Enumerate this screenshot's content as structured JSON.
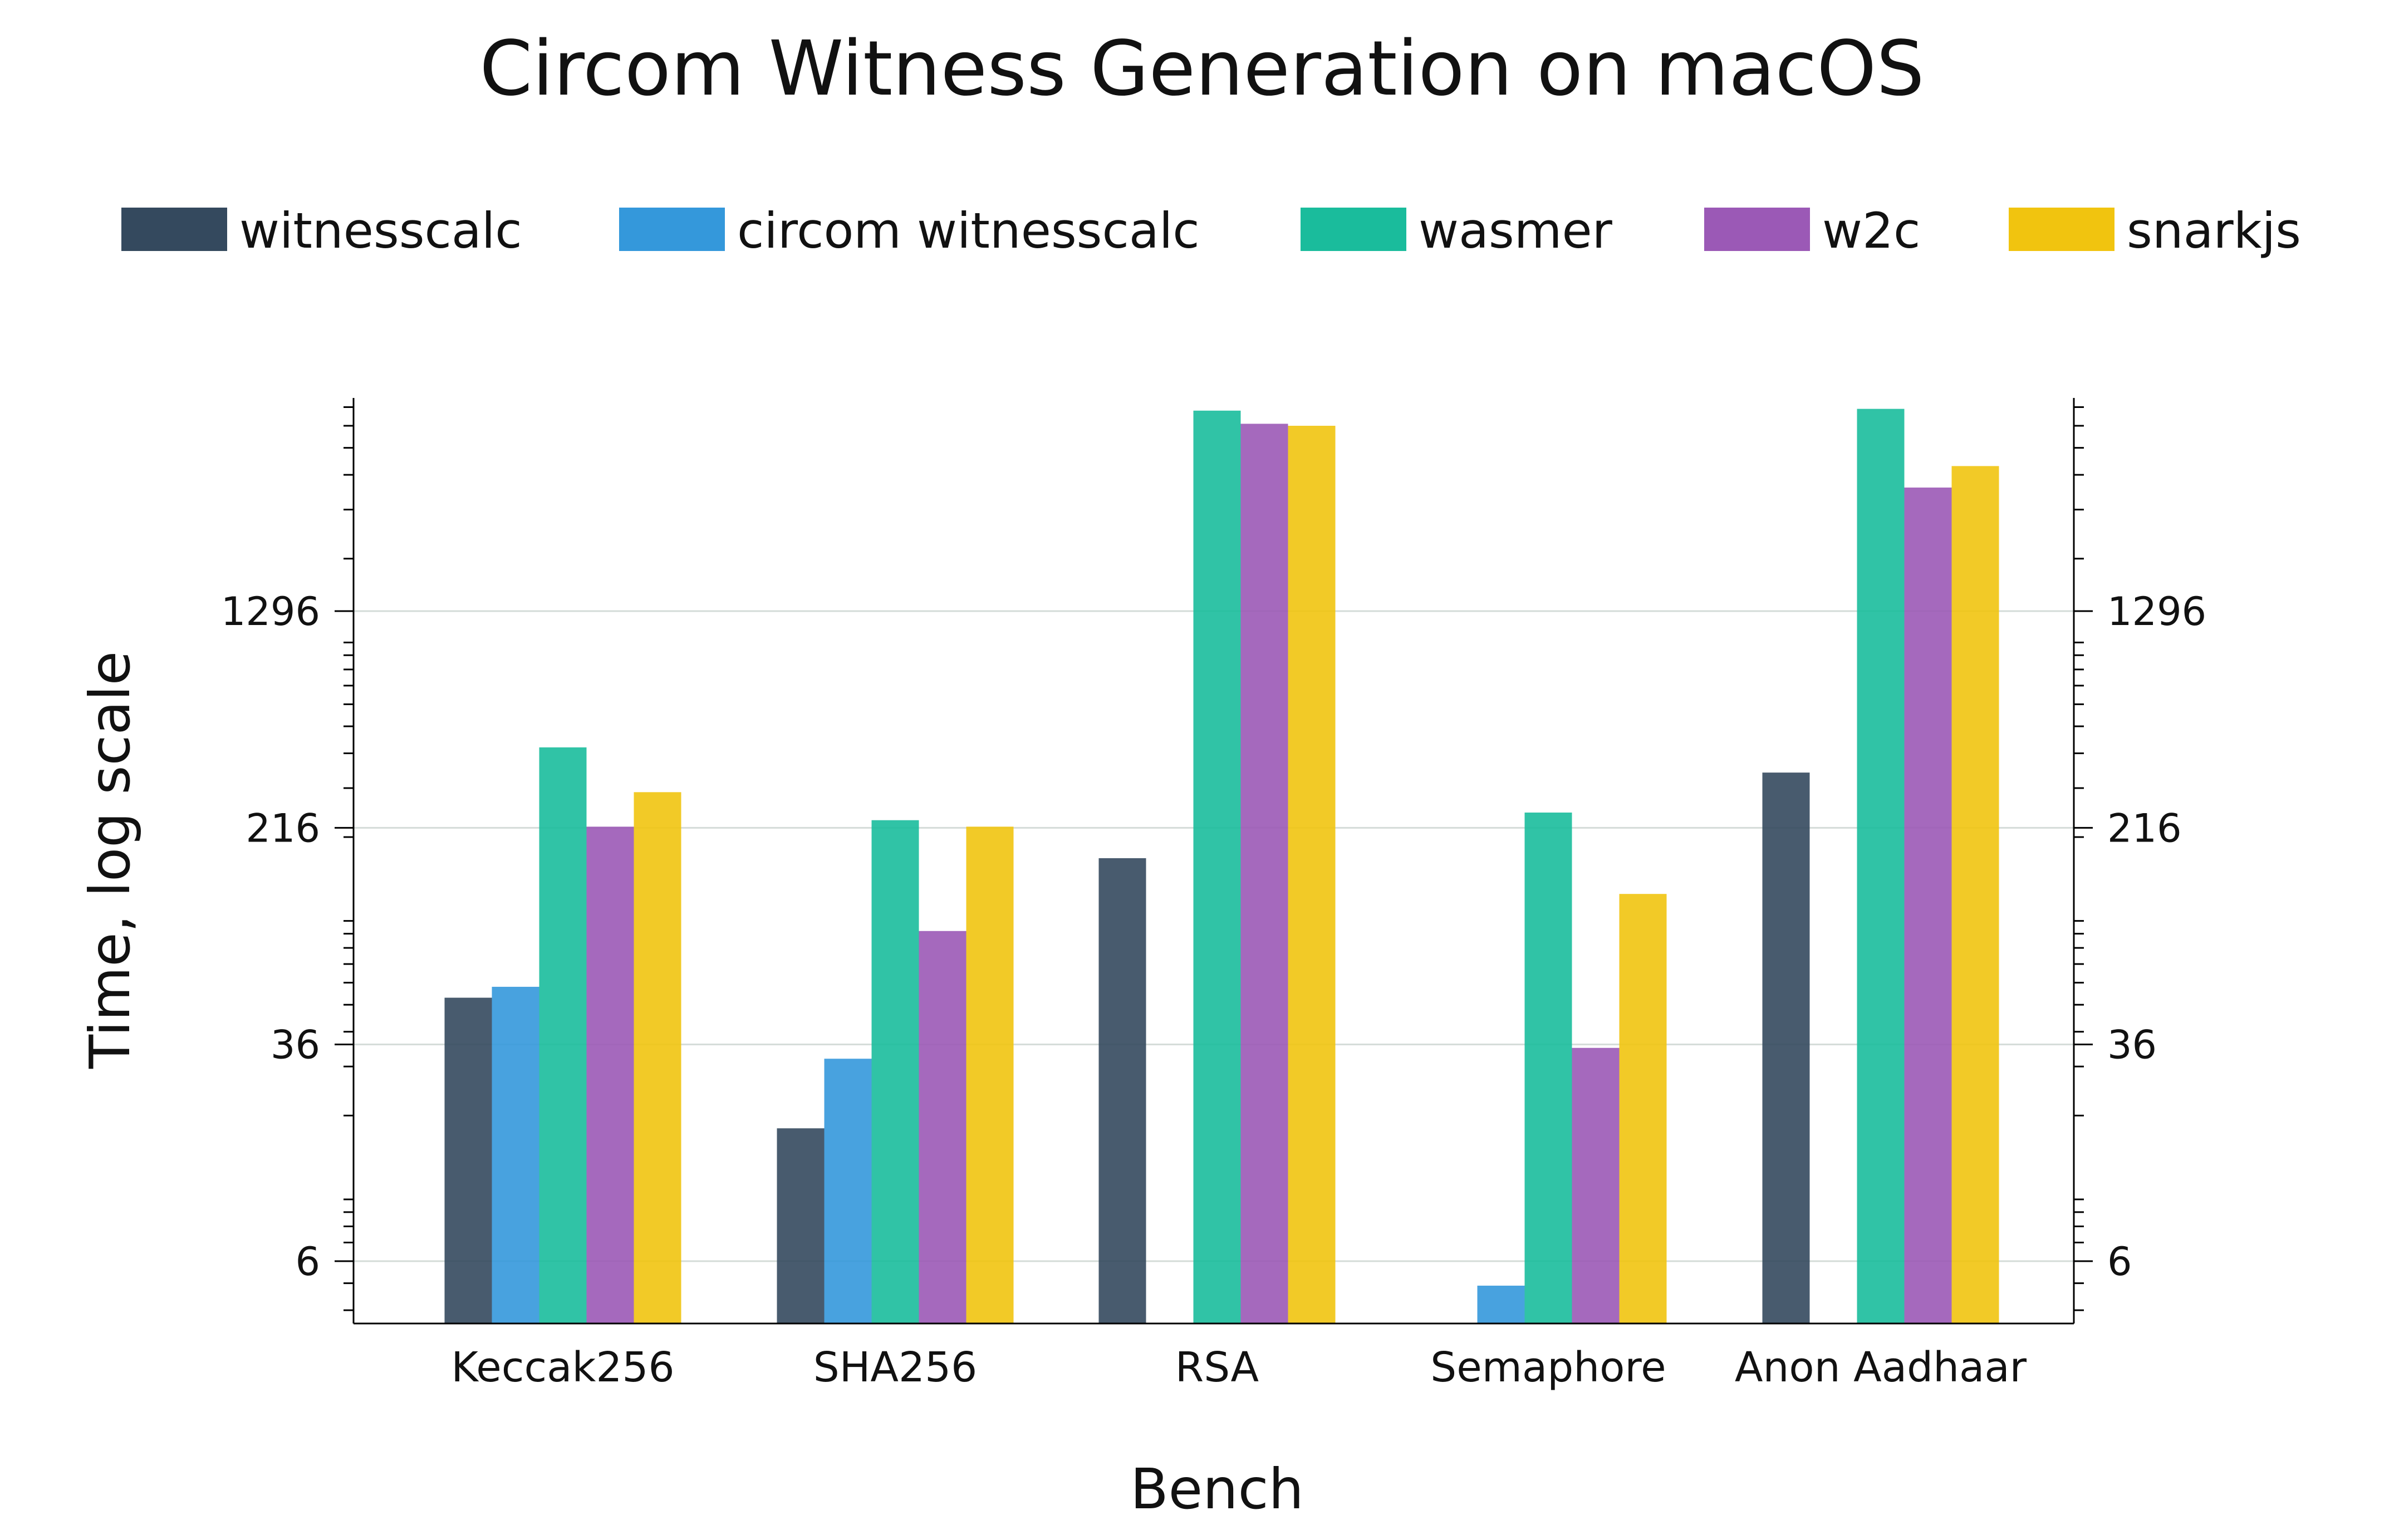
{
  "chart_data": {
    "type": "bar",
    "title": "Circom Witness Generation on macOS",
    "xlabel": "Bench",
    "ylabel": "Time, log scale",
    "yscale": "log",
    "ylim": [
      3.5,
      9000
    ],
    "yticks": [
      6,
      36,
      216,
      1296
    ],
    "ytick_labels": [
      "6",
      "36",
      "216",
      "1296"
    ],
    "grid": true,
    "legend_position": "top",
    "categories": [
      "Keccak256",
      "SHA256",
      "RSA",
      "Semaphore",
      "Anon Aadhaar"
    ],
    "series": [
      {
        "name": "witnesscalc",
        "color": "#34495e",
        "values": [
          53,
          18,
          168,
          null,
          341
        ]
      },
      {
        "name": "circom witnesscalc",
        "color": "#3498db",
        "values": [
          58,
          32,
          null,
          4.9,
          null
        ]
      },
      {
        "name": "wasmer",
        "color": "#1abc9c",
        "values": [
          420,
          230,
          6800,
          245,
          6900
        ]
      },
      {
        "name": "w2c",
        "color": "#9b59b6",
        "values": [
          218,
          92,
          6100,
          35,
          3600
        ]
      },
      {
        "name": "snarkjs",
        "color": "#f1c40f",
        "values": [
          290,
          218,
          6000,
          125,
          4300
        ]
      }
    ]
  }
}
